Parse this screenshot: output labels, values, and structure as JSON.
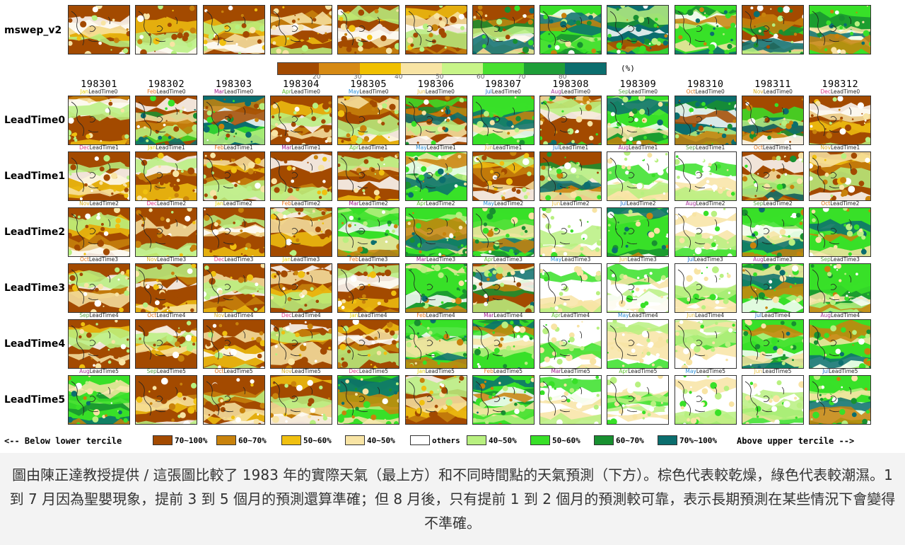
{
  "caption": "圖由陳正達教授提供 / 這張圖比較了 1983 年的實際天氣（最上方）和不同時間點的天氣預測（下方）。棕色代表較乾燥，綠色代表較潮濕。1 到 7 月因為聖嬰現象，提前 3 到 5 個月的預測還算準確；但 8 月後，只有提前 1 到 2 個月的預測較可靠，表示長期預測在某些情況下會變得不準確。",
  "chart_data": {
    "type": "heatmap",
    "observation_row_label": "mswep_v2",
    "months": [
      "198301",
      "198302",
      "198303",
      "198304",
      "198305",
      "198306",
      "198307",
      "198308",
      "198309",
      "198310",
      "198311",
      "198312"
    ],
    "month_abbr": [
      "Jan",
      "Feb",
      "Mar",
      "Apr",
      "May",
      "Jun",
      "Jul",
      "Aug",
      "Sep",
      "Oct",
      "Nov",
      "Dec"
    ],
    "month_colors": {
      "Jan": "#e6d200",
      "Feb": "#e8731a",
      "Mar": "#a0158c",
      "Apr": "#5ec230",
      "May": "#2a8fd8",
      "Jun": "#e8c040",
      "Jul": "#1a6fd0",
      "Aug": "#a8329c",
      "Sep": "#58a848",
      "Oct": "#e07010",
      "Nov": "#d8b020",
      "Dec": "#e03a8a"
    },
    "lead_rows": [
      {
        "label": "LeadTime0",
        "tag": "LeadTime0",
        "init": [
          "Jan",
          "Feb",
          "Mar",
          "Apr",
          "May",
          "Jun",
          "Jul",
          "Aug",
          "Sep",
          "Oct",
          "Nov",
          "Dec"
        ]
      },
      {
        "label": "LeadTime1",
        "tag": "LeadTime1",
        "init": [
          "Dec",
          "Jan",
          "Feb",
          "Mar",
          "Apr",
          "May",
          "Jun",
          "Jul",
          "Aug",
          "Sep",
          "Oct",
          "Nov"
        ]
      },
      {
        "label": "LeadTime2",
        "tag": "LeadTime2",
        "init": [
          "Nov",
          "Dec",
          "Jan",
          "Feb",
          "Mar",
          "Apr",
          "May",
          "Jun",
          "Jul",
          "Aug",
          "Sep",
          "Oct"
        ]
      },
      {
        "label": "LeadTime3",
        "tag": "LeadTime3",
        "init": [
          "Oct",
          "Nov",
          "Dec",
          "Jan",
          "Feb",
          "Mar",
          "Apr",
          "May",
          "Jun",
          "Jul",
          "Aug",
          "Sep"
        ]
      },
      {
        "label": "LeadTime4",
        "tag": "LeadTime4",
        "init": [
          "Sep",
          "Oct",
          "Nov",
          "Dec",
          "Jan",
          "Feb",
          "Mar",
          "Apr",
          "May",
          "Jun",
          "Jul",
          "Aug"
        ]
      },
      {
        "label": "LeadTime5",
        "tag": "LeadTime5",
        "init": [
          "Aug",
          "Sep",
          "Oct",
          "Nov",
          "Dec",
          "Jan",
          "Feb",
          "Mar",
          "Apr",
          "May",
          "Jun",
          "Jul"
        ]
      }
    ],
    "colorbar": {
      "unit": "(%)",
      "ticks": [
        "20",
        "30",
        "40",
        "50",
        "60",
        "70",
        "80"
      ],
      "colors": [
        "#a34a00",
        "#d68a14",
        "#f0c000",
        "#f8e4a4",
        "#c8f488",
        "#48e030",
        "#1e9e38",
        "#0b6e6e"
      ]
    },
    "tercile_legend": {
      "below_label": "<-- Below lower tercile",
      "above_label": "Above upper tercile -->",
      "items": [
        {
          "label": "70~100%",
          "color": "#a34a00"
        },
        {
          "label": "60~70%",
          "color": "#c8820c"
        },
        {
          "label": "50~60%",
          "color": "#f0c010"
        },
        {
          "label": "40~50%",
          "color": "#f8e4a4"
        },
        {
          "label": "others",
          "color": "#ffffff"
        },
        {
          "label": "40~50%",
          "color": "#b8f080"
        },
        {
          "label": "50~60%",
          "color": "#38e028"
        },
        {
          "label": "60~70%",
          "color": "#189030"
        },
        {
          "label": "70%~100%",
          "color": "#0b6e6e"
        }
      ]
    },
    "panel_dominant_category": {
      "obs": [
        "brown",
        "brown",
        "brown",
        "brown",
        "brown",
        "brown",
        "mixed",
        "green",
        "teal",
        "green",
        "mixed",
        "green"
      ],
      "LeadTime0": [
        "brown",
        "mixed",
        "teal",
        "brown",
        "brown",
        "mixed",
        "green",
        "mixed",
        "green",
        "teal",
        "mixed",
        "brown"
      ],
      "LeadTime1": [
        "brown",
        "brown",
        "brown",
        "brown",
        "brown",
        "green",
        "brown",
        "mixed",
        "white",
        "white",
        "mixed",
        "brown"
      ],
      "LeadTime2": [
        "brown",
        "brown",
        "brown",
        "brown",
        "green",
        "green",
        "green",
        "white",
        "green",
        "white",
        "green",
        "green"
      ],
      "LeadTime3": [
        "brown",
        "brown",
        "brown",
        "brown",
        "brown",
        "green",
        "mixed",
        "white",
        "white",
        "white",
        "green",
        "green"
      ],
      "LeadTime4": [
        "brown",
        "brown",
        "brown",
        "brown",
        "brown",
        "green",
        "green",
        "white",
        "white",
        "white",
        "green",
        "green"
      ],
      "LeadTime5": [
        "green",
        "brown",
        "brown",
        "brown",
        "green",
        "brown",
        "green",
        "white",
        "white",
        "white",
        "white",
        "green"
      ]
    }
  }
}
